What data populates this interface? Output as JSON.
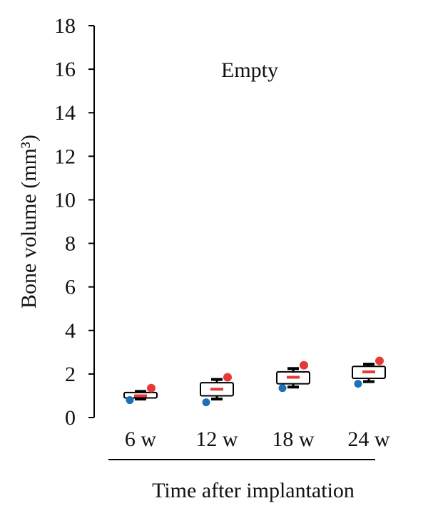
{
  "chart_data": {
    "type": "box",
    "title": "",
    "annotation": "Empty",
    "xlabel": "Time after implantation",
    "ylabel": "Bone volume (mm³)",
    "ylim": [
      0,
      18
    ],
    "yticks": [
      "0",
      "2",
      "4",
      "6",
      "8",
      "10",
      "12",
      "14",
      "16",
      "18"
    ],
    "categories": [
      "6 w",
      "12 w",
      "18 w",
      "24 w"
    ],
    "boxes": [
      {
        "category": "6 w",
        "whisker_low": 0.85,
        "q1": 0.9,
        "mean": 1.0,
        "q3": 1.15,
        "whisker_high": 1.2,
        "min_point": 0.8,
        "max_point": 1.35
      },
      {
        "category": "12 w",
        "whisker_low": 0.85,
        "q1": 1.0,
        "mean": 1.3,
        "q3": 1.6,
        "whisker_high": 1.75,
        "min_point": 0.7,
        "max_point": 1.85
      },
      {
        "category": "18 w",
        "whisker_low": 1.4,
        "q1": 1.55,
        "mean": 1.85,
        "q3": 2.1,
        "whisker_high": 2.25,
        "min_point": 1.35,
        "max_point": 2.4
      },
      {
        "category": "24 w",
        "whisker_low": 1.65,
        "q1": 1.8,
        "mean": 2.1,
        "q3": 2.35,
        "whisker_high": 2.45,
        "min_point": 1.55,
        "max_point": 2.6
      }
    ],
    "colors": {
      "max_point": "#e53935",
      "min_point": "#1e6fb5",
      "mean_line": "#e53935",
      "box_edge": "#000000",
      "axis": "#000000"
    }
  }
}
